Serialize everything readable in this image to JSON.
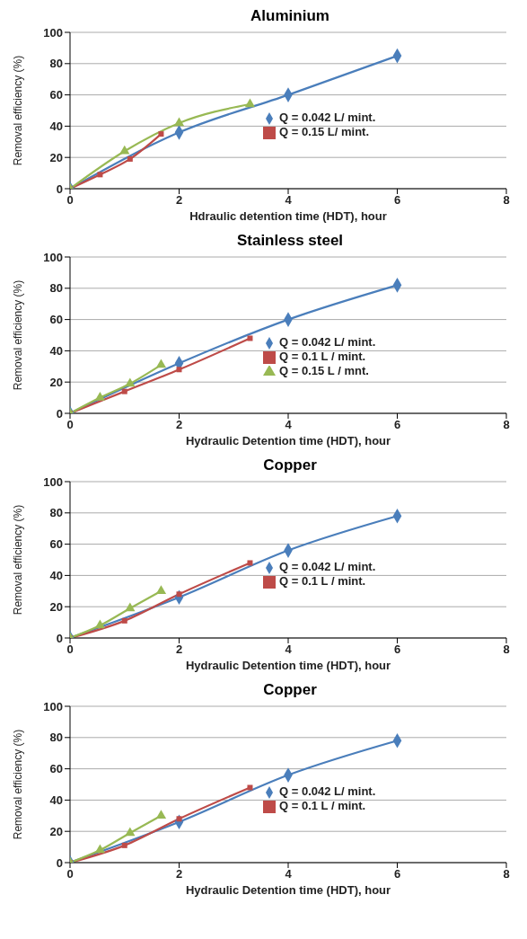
{
  "chart_data": [
    {
      "type": "line",
      "title": "Aluminium",
      "xlabel": "Hdraulic detention time (HDT), hour",
      "ylabel": "Removal efficiency (%)",
      "xlim": [
        0,
        8
      ],
      "xticks": [
        0,
        2,
        4,
        6,
        8
      ],
      "ylim": [
        0,
        100
      ],
      "yticks": [
        0,
        20,
        40,
        60,
        80,
        100
      ],
      "grid": "y",
      "legend": "right",
      "series": [
        {
          "name": "Q = 0.042 L/ mint.",
          "color": "#4a7ebb",
          "marker": "diamond",
          "x": [
            0,
            2,
            4,
            6
          ],
          "values": [
            0,
            36,
            60,
            85
          ]
        },
        {
          "name": "Q = 0.15 L/ mint.",
          "color": "#be4b48",
          "marker": "square",
          "x": [
            0,
            0.55,
            1.1,
            1.67
          ],
          "values": [
            0,
            9,
            19,
            35
          ]
        },
        {
          "color": "#98b954",
          "marker": "triangle",
          "x": [
            0,
            1,
            2,
            3.3
          ],
          "values": [
            0,
            24,
            42,
            54
          ]
        }
      ]
    },
    {
      "type": "line",
      "title": "Stainless steel",
      "xlabel": "Hydraulic Detention time (HDT), hour",
      "ylabel": "Removal efficiency (%)",
      "xlim": [
        0,
        8
      ],
      "xticks": [
        0,
        2,
        4,
        6,
        8
      ],
      "ylim": [
        0,
        100
      ],
      "yticks": [
        0,
        20,
        40,
        60,
        80,
        100
      ],
      "grid": "y",
      "legend": "right",
      "series": [
        {
          "name": "Q = 0.042 L/ mint.",
          "color": "#4a7ebb",
          "marker": "diamond",
          "x": [
            0,
            2,
            4,
            6
          ],
          "values": [
            0,
            32,
            60,
            82
          ]
        },
        {
          "name": "Q = 0.1 L / mint.",
          "color": "#be4b48",
          "marker": "square",
          "x": [
            0,
            1,
            2,
            3.3
          ],
          "values": [
            0,
            14,
            28,
            48
          ]
        },
        {
          "name": "Q = 0.15 L / mnt.",
          "color": "#98b954",
          "marker": "triangle",
          "x": [
            0,
            0.55,
            1.1,
            1.67
          ],
          "values": [
            0,
            10,
            19,
            31
          ]
        }
      ]
    },
    {
      "type": "line",
      "title": "Copper",
      "xlabel": "Hydraulic Detention time (HDT), hour",
      "ylabel": "Removal efficiency (%)",
      "xlim": [
        0,
        8
      ],
      "xticks": [
        0,
        2,
        4,
        6,
        8
      ],
      "ylim": [
        0,
        100
      ],
      "yticks": [
        0,
        20,
        40,
        60,
        80,
        100
      ],
      "grid": "y",
      "legend": "right",
      "series": [
        {
          "name": "Q = 0.042 L/ mint.",
          "color": "#4a7ebb",
          "marker": "diamond",
          "x": [
            0,
            2,
            4,
            6
          ],
          "values": [
            0,
            26,
            56,
            78
          ]
        },
        {
          "name": "Q = 0.1 L / mint.",
          "color": "#be4b48",
          "marker": "square",
          "x": [
            0,
            1,
            2,
            3.3
          ],
          "values": [
            0,
            11,
            28,
            48
          ]
        },
        {
          "color": "#98b954",
          "marker": "triangle",
          "x": [
            0,
            0.55,
            1.1,
            1.67
          ],
          "values": [
            0,
            8,
            19,
            30
          ]
        }
      ]
    },
    {
      "type": "line",
      "title": "Copper",
      "xlabel": "Hydraulic Detention time (HDT), hour",
      "ylabel": "Removal efficiency (%)",
      "xlim": [
        0,
        8
      ],
      "xticks": [
        0,
        2,
        4,
        6,
        8
      ],
      "ylim": [
        0,
        100
      ],
      "yticks": [
        0,
        20,
        40,
        60,
        80,
        100
      ],
      "grid": "y",
      "legend": "right",
      "series": [
        {
          "name": "Q = 0.042 L/ mint.",
          "color": "#4a7ebb",
          "marker": "diamond",
          "x": [
            0,
            2,
            4,
            6
          ],
          "values": [
            0,
            26,
            56,
            78
          ]
        },
        {
          "name": "Q = 0.1 L / mint.",
          "color": "#be4b48",
          "marker": "square",
          "x": [
            0,
            1,
            2,
            3.3
          ],
          "values": [
            0,
            11,
            28,
            48
          ]
        },
        {
          "color": "#98b954",
          "marker": "triangle",
          "x": [
            0,
            0.55,
            1.1,
            1.67
          ],
          "values": [
            0,
            8,
            19,
            30
          ]
        }
      ]
    }
  ]
}
